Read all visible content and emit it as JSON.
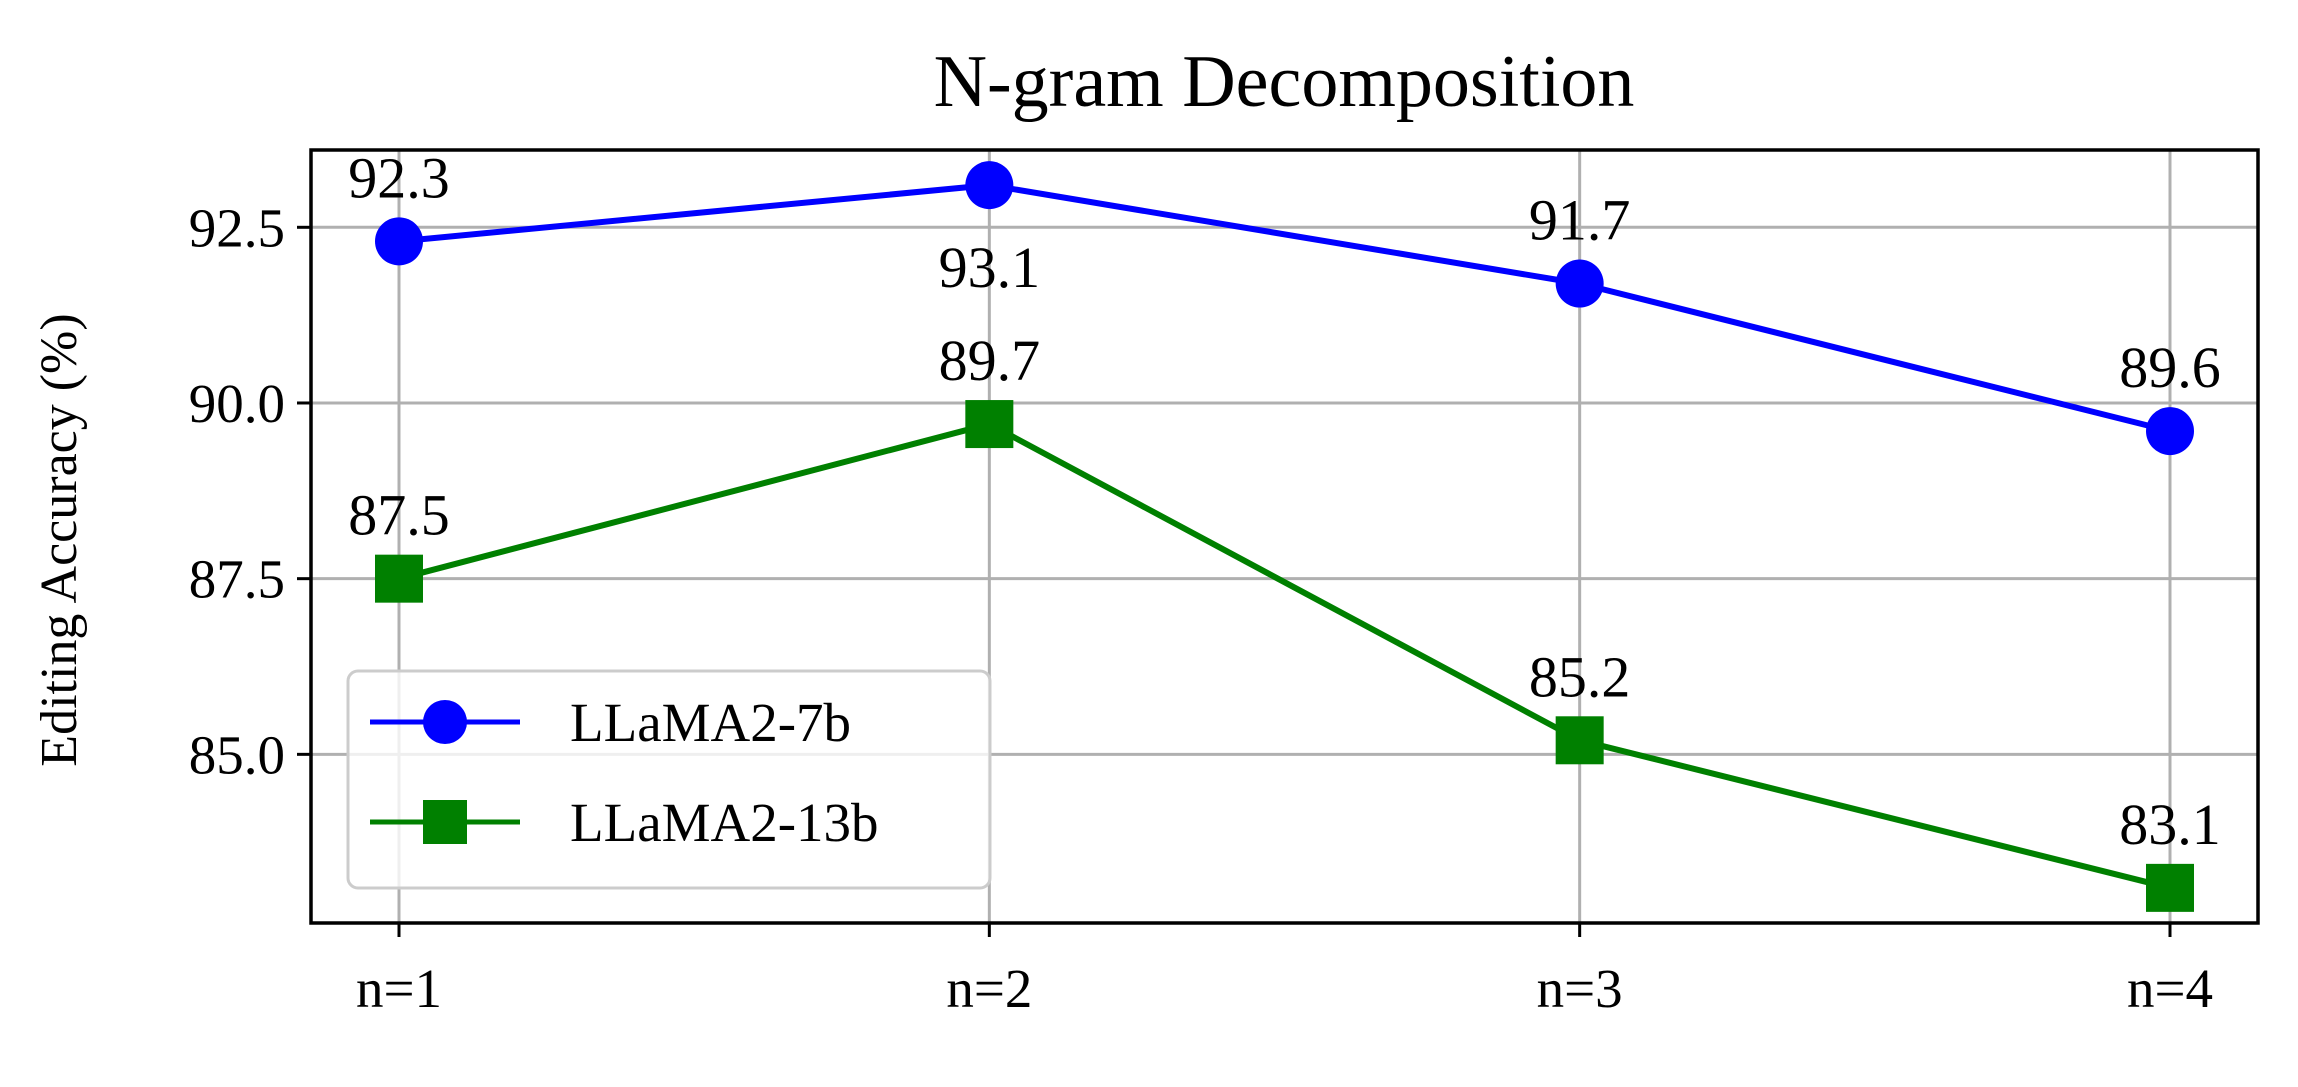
{
  "chart_data": {
    "type": "line",
    "title": "N-gram Decomposition",
    "xlabel": "",
    "ylabel": "Editing Accuracy (%)",
    "categories": [
      "n=1",
      "n=2",
      "n=3",
      "n=4"
    ],
    "y_ticks": [
      85.0,
      87.5,
      90.0,
      92.5
    ],
    "y_tick_labels": [
      "85.0",
      "87.5",
      "90.0",
      "92.5"
    ],
    "ylim": [
      82.6,
      93.6
    ],
    "grid": true,
    "legend_position": "lower-left",
    "series": [
      {
        "name": "LLaMA2-7b",
        "values": [
          92.3,
          93.1,
          91.7,
          89.6
        ],
        "labels": [
          "92.3",
          "93.1",
          "91.7",
          "89.6"
        ],
        "label_positions": [
          "above",
          "below",
          "above",
          "above"
        ],
        "color": "#0000ff",
        "marker": "circle"
      },
      {
        "name": "LLaMA2-13b",
        "values": [
          87.5,
          89.7,
          85.2,
          83.1
        ],
        "labels": [
          "87.5",
          "89.7",
          "85.2",
          "83.1"
        ],
        "label_positions": [
          "above",
          "above",
          "above",
          "above"
        ],
        "color": "#008000",
        "marker": "square"
      }
    ]
  }
}
